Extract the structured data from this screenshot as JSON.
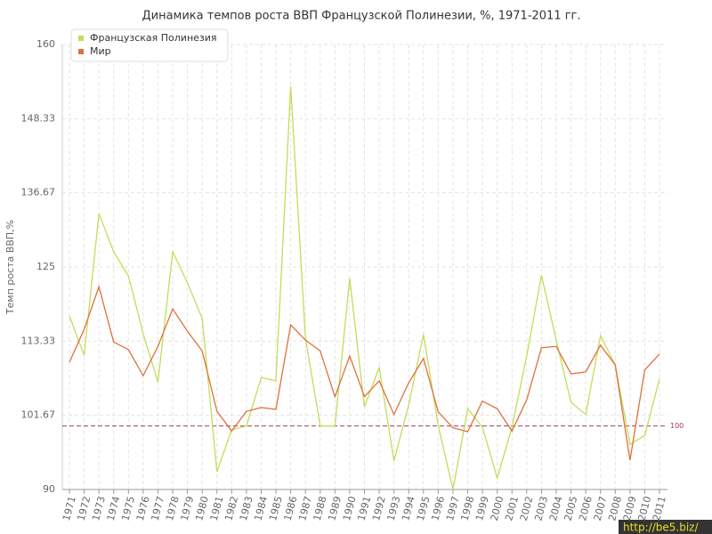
{
  "chart_data": {
    "type": "line",
    "title": "Динамика темпов роста ВВП Французской Полинезии, %, 1971-2011 гг.",
    "y_label": "Темп роста ВВП,%",
    "categories": [
      "1971",
      "1972",
      "1973",
      "1974",
      "1975",
      "1976",
      "1977",
      "1978",
      "1979",
      "1980",
      "1981",
      "1982",
      "1983",
      "1984",
      "1985",
      "1986",
      "1987",
      "1988",
      "1989",
      "1990",
      "1991",
      "1992",
      "1993",
      "1994",
      "1995",
      "1996",
      "1997",
      "1998",
      "1999",
      "2000",
      "2001",
      "2002",
      "2003",
      "2004",
      "2005",
      "2006",
      "2007",
      "2008",
      "2009",
      "2010",
      "2011"
    ],
    "series": [
      {
        "name": "Французская Полинезия",
        "color": "#c4dc5a",
        "values": [
          117.3,
          111.1,
          133.4,
          127.4,
          123.6,
          114.5,
          106.9,
          127.4,
          122.5,
          116.9,
          92.8,
          99.4,
          100,
          107.6,
          107.1,
          153.4,
          113.8,
          100,
          100,
          123.2,
          103,
          109.2,
          94.5,
          103.3,
          114.4,
          100.1,
          90,
          102.7,
          99.8,
          91.8,
          99.8,
          111,
          123.7,
          113.5,
          103.7,
          101.8,
          114.2,
          109.6,
          97.1,
          98.5,
          107.4
        ]
      },
      {
        "name": "Мир",
        "color": "#e0703c",
        "values": [
          110,
          115.2,
          121.9,
          113.2,
          112,
          107.9,
          112.5,
          118.4,
          114.9,
          111.8,
          102.3,
          99.2,
          102.3,
          102.9,
          102.6,
          115.9,
          113.5,
          111.8,
          104.6,
          111,
          104.6,
          107.1,
          101.8,
          106.8,
          110.6,
          102.2,
          99.7,
          99.1,
          103.9,
          102.7,
          99.2,
          104.1,
          112.3,
          112.5,
          108.2,
          108.5,
          112.7,
          109.6,
          94.6,
          108.8,
          111.3
        ]
      }
    ],
    "ylim": [
      90,
      160
    ],
    "yticks": [
      90,
      101.67,
      113.33,
      125,
      136.67,
      148.33,
      160
    ],
    "reference_line": 100,
    "reference_color": "#a0405a",
    "grid": true,
    "legend": "top-left",
    "watermark": "http://be5.biz/"
  }
}
